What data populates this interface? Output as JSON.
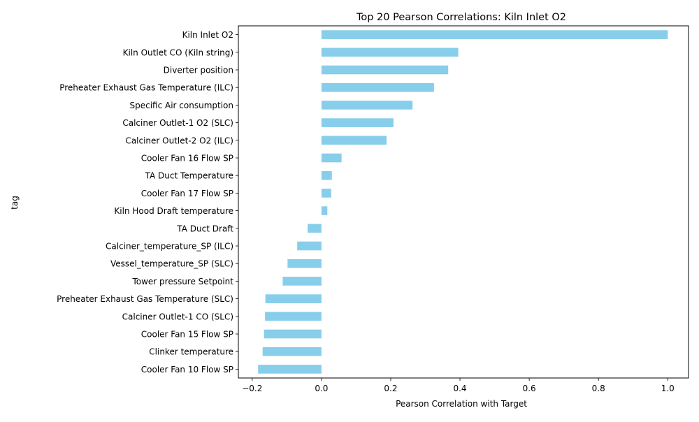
{
  "chart_data": {
    "type": "bar",
    "orientation": "horizontal",
    "title": "Top 20 Pearson Correlations: Kiln Inlet O2",
    "xlabel": "Pearson Correlation with Target",
    "ylabel": "tag",
    "xlim": [
      -0.24,
      1.06
    ],
    "xticks": [
      -0.2,
      0.0,
      0.2,
      0.4,
      0.6,
      0.8,
      1.0
    ],
    "xtick_labels": [
      "−0.2",
      "0.0",
      "0.2",
      "0.4",
      "0.6",
      "0.8",
      "1.0"
    ],
    "bar_color": "#87CEEB",
    "grid": false,
    "legend": "none",
    "categories": [
      "Kiln Inlet O2",
      "Kiln Outlet CO (Kiln string)",
      "Diverter position",
      "Preheater Exhaust Gas Temperature (ILC)",
      "Specific Air consumption",
      "Calciner Outlet-1 O2 (SLC)",
      "Calciner Outlet-2 O2 (ILC)",
      "Cooler Fan 16 Flow SP",
      "TA Duct Temperature",
      "Cooler Fan 17 Flow SP",
      "Kiln Hood Draft temperature",
      "TA Duct Draft",
      "Calciner_temperature_SP (ILC)",
      "Vessel_temperature_SP (SLC)",
      "Tower pressure Setpoint",
      "Preheater Exhaust Gas Temperature (SLC)",
      "Calciner Outlet-1 CO (SLC)",
      "Cooler Fan 15 Flow SP",
      "Clinker temperature",
      "Cooler Fan 10 Flow SP"
    ],
    "values": [
      1.0,
      0.395,
      0.366,
      0.325,
      0.263,
      0.208,
      0.188,
      0.058,
      0.03,
      0.028,
      0.017,
      -0.04,
      -0.07,
      -0.098,
      -0.112,
      -0.162,
      -0.163,
      -0.166,
      -0.17,
      -0.183
    ]
  }
}
